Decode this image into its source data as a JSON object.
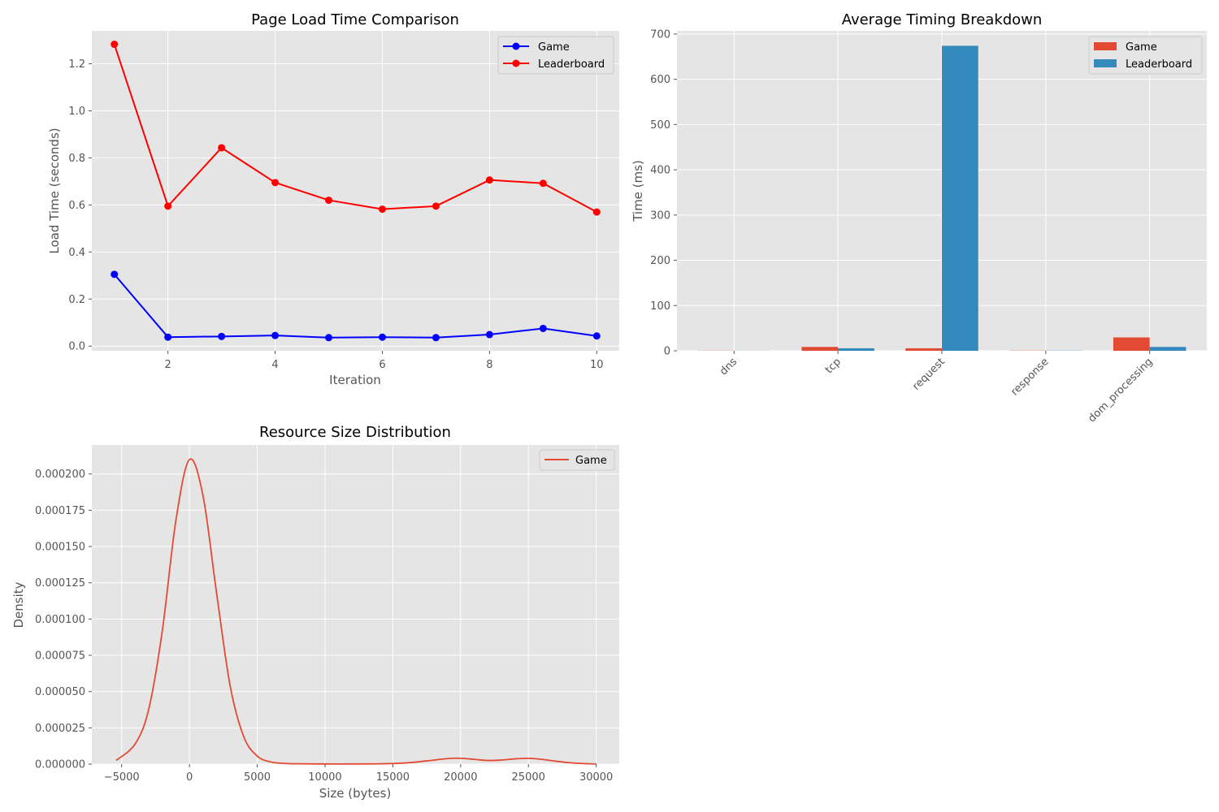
{
  "colors": {
    "panel_bg": "#E5E5E5",
    "grid": "#FFFFFF",
    "tick_text": "#555555",
    "game_line": "#0000FF",
    "leaderboard_line": "#FF0000",
    "bar_game": "#E24A33",
    "bar_leaderboard": "#348ABD",
    "kde_game": "#E24A33"
  },
  "chart_data": [
    {
      "type": "line",
      "title": "Page Load Time Comparison",
      "xlabel": "Iteration",
      "ylabel": "Load Time (seconds)",
      "xlim": [
        0.58,
        10.42
      ],
      "ylim": [
        -0.02,
        1.34
      ],
      "xticks": [
        2,
        4,
        6,
        8,
        10
      ],
      "yticks": [
        0.0,
        0.2,
        0.4,
        0.6,
        0.8,
        1.0,
        1.2
      ],
      "ytick_labels": [
        "0.0",
        "0.2",
        "0.4",
        "0.6",
        "0.8",
        "1.0",
        "1.2"
      ],
      "grid": true,
      "legend": "top-right",
      "x": [
        1,
        2,
        3,
        4,
        5,
        6,
        7,
        8,
        9,
        10
      ],
      "series": [
        {
          "name": "Game",
          "color": "#0000FF",
          "marker": "circle",
          "values": [
            0.305,
            0.038,
            0.041,
            0.045,
            0.036,
            0.038,
            0.036,
            0.049,
            0.075,
            0.043
          ]
        },
        {
          "name": "Leaderboard",
          "color": "#FF0000",
          "marker": "circle",
          "values": [
            1.283,
            0.595,
            0.843,
            0.695,
            0.62,
            0.582,
            0.595,
            0.706,
            0.692,
            0.57
          ]
        }
      ]
    },
    {
      "type": "bar",
      "title": "Average Timing Breakdown",
      "xlabel": "",
      "ylabel": "Time (ms)",
      "ylim": [
        0,
        707
      ],
      "yticks": [
        0,
        100,
        200,
        300,
        400,
        500,
        600,
        700
      ],
      "ytick_labels": [
        "0",
        "100",
        "200",
        "300",
        "400",
        "500",
        "600",
        "700"
      ],
      "grid": true,
      "legend": "top-right",
      "categories": [
        "dns",
        "tcp",
        "request",
        "response",
        "dom_processing"
      ],
      "series": [
        {
          "name": "Game",
          "color": "#E24A33",
          "values": [
            0.3,
            8.5,
            5.5,
            0.4,
            29.5
          ]
        },
        {
          "name": "Leaderboard",
          "color": "#348ABD",
          "values": [
            0.2,
            5.5,
            674.0,
            0.4,
            8.5
          ]
        }
      ]
    },
    {
      "type": "line",
      "title": "Resource Size Distribution",
      "xlabel": "Size (bytes)",
      "ylabel": "Density",
      "xlim": [
        -7200,
        31700
      ],
      "ylim": [
        0,
        0.00022
      ],
      "xticks": [
        -5000,
        0,
        5000,
        10000,
        15000,
        20000,
        25000,
        30000
      ],
      "xtick_labels": [
        "−5000",
        "0",
        "5000",
        "10000",
        "15000",
        "20000",
        "25000",
        "30000"
      ],
      "yticks": [
        0,
        2.5e-05,
        5e-05,
        7.5e-05,
        0.0001,
        0.000125,
        0.00015,
        0.000175,
        0.0002
      ],
      "ytick_labels": [
        "0.000000",
        "0.000025",
        "0.000050",
        "0.000075",
        "0.000100",
        "0.000125",
        "0.000150",
        "0.000175",
        "0.000200"
      ],
      "grid": true,
      "legend": "top-right",
      "series": [
        {
          "name": "Game",
          "color": "#E24A33",
          "x": [
            -5400,
            -4000,
            -3000,
            -2000,
            -1000,
            0,
            1000,
            2000,
            3000,
            4000,
            5000,
            6000,
            7000,
            8000,
            10000,
            12000,
            14000,
            16000,
            17500,
            19000,
            20000,
            21000,
            22000,
            23000,
            24000,
            25000,
            26000,
            27000,
            28000,
            29000,
            30000
          ],
          "y": [
            2.5e-06,
            1.4e-05,
            3.8e-05,
            9.2e-05,
            0.000168,
            0.00021,
            0.000185,
            0.000118,
            5.4e-05,
            1.9e-05,
            5.5e-06,
            1.5e-06,
            5e-07,
            2e-07,
            1e-07,
            1e-07,
            2e-07,
            8e-07,
            2.2e-06,
            3.8e-06,
            4e-06,
            3.3e-06,
            2.5e-06,
            2.8e-06,
            3.6e-06,
            4e-06,
            3.3e-06,
            2e-06,
            1e-06,
            4e-07,
            1e-07
          ]
        }
      ]
    }
  ]
}
